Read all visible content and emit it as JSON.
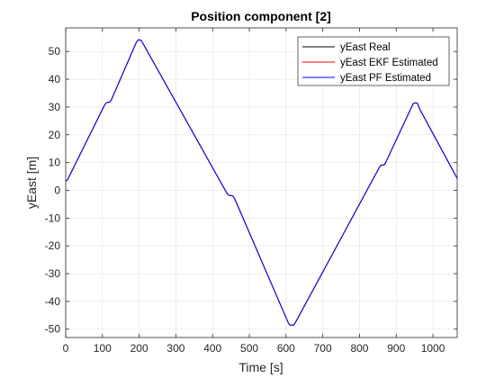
{
  "chart_data": {
    "type": "line",
    "title": "Position component [2]",
    "xlabel": "Time [s]",
    "ylabel": "yEast [m]",
    "xlim": [
      0,
      1066
    ],
    "ylim": [
      -53,
      58.5
    ],
    "xticks": [
      0,
      100,
      200,
      300,
      400,
      500,
      600,
      700,
      800,
      900,
      1000
    ],
    "yticks": [
      -50,
      -40,
      -30,
      -20,
      -10,
      0,
      10,
      20,
      30,
      40,
      50
    ],
    "xtick_labels": [
      "0",
      "100",
      "200",
      "300",
      "400",
      "500",
      "600",
      "700",
      "800",
      "900",
      "1000"
    ],
    "ytick_labels": [
      "-50",
      "-40",
      "-30",
      "-20",
      "-10",
      "0",
      "10",
      "20",
      "30",
      "40",
      "50"
    ],
    "grid": true,
    "legend_position": "top-right",
    "series": [
      {
        "name": "yEast Real",
        "color": "#000000",
        "x": [
          0,
          5,
          105,
          111,
          120,
          124,
          193,
          198,
          205,
          210,
          440,
          445,
          455,
          460,
          607,
          611,
          620,
          626,
          855,
          860,
          868,
          873,
          946,
          951,
          958,
          963,
          1066
        ],
        "y": [
          3.3,
          3.8,
          30.5,
          31.6,
          31.8,
          32.5,
          53.5,
          54.2,
          54.1,
          53.0,
          -1.3,
          -1.8,
          -2.0,
          -3.0,
          -48.0,
          -48.5,
          -48.6,
          -47.5,
          8.5,
          9.1,
          9.2,
          10.5,
          31.2,
          31.5,
          31.3,
          29.5,
          4.3
        ]
      },
      {
        "name": "yEast EKF Estimated",
        "color": "#ff0000",
        "x": [
          0,
          5,
          105,
          111,
          120,
          124,
          193,
          198,
          205,
          210,
          440,
          445,
          455,
          460,
          607,
          611,
          620,
          626,
          855,
          860,
          868,
          873,
          946,
          951,
          958,
          963,
          1066
        ],
        "y": [
          3.3,
          3.8,
          30.5,
          31.6,
          31.8,
          32.5,
          53.5,
          54.2,
          54.1,
          53.0,
          -1.3,
          -1.8,
          -2.0,
          -3.0,
          -48.0,
          -48.5,
          -48.6,
          -47.5,
          8.5,
          9.1,
          9.2,
          10.5,
          31.2,
          31.5,
          31.3,
          29.5,
          4.3
        ]
      },
      {
        "name": "yEast PF Estimated",
        "color": "#0000ff",
        "x": [
          0,
          5,
          105,
          111,
          120,
          124,
          193,
          198,
          205,
          210,
          440,
          445,
          455,
          460,
          607,
          611,
          620,
          626,
          855,
          860,
          868,
          873,
          946,
          951,
          958,
          963,
          1066
        ],
        "y": [
          3.3,
          3.8,
          30.5,
          31.6,
          31.8,
          32.5,
          53.5,
          54.2,
          54.1,
          53.0,
          -1.3,
          -1.8,
          -2.0,
          -3.0,
          -48.0,
          -48.5,
          -48.6,
          -47.5,
          8.5,
          9.1,
          9.2,
          10.5,
          31.2,
          31.5,
          31.3,
          29.5,
          4.3
        ]
      }
    ]
  }
}
